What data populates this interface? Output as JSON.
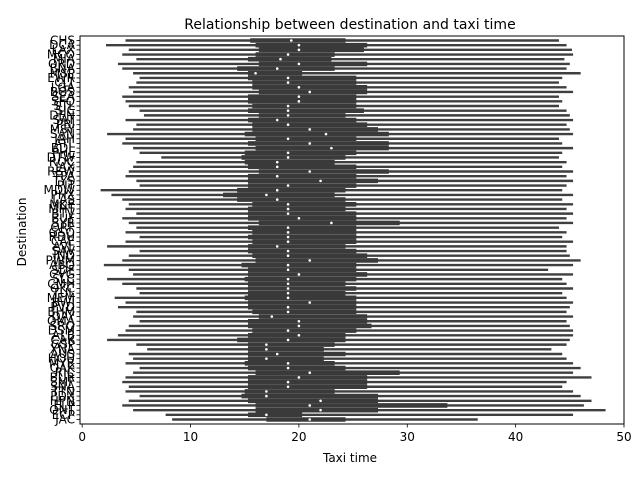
{
  "chart_data": {
    "type": "violin",
    "title": "Relationship between destination and taxi time",
    "xlabel": "Taxi time",
    "ylabel": "Destination",
    "xlim": [
      -0.2,
      50
    ],
    "xticks": [
      0,
      10,
      20,
      30,
      40,
      50
    ],
    "categories": [
      "CHS",
      "DCA",
      "LAX",
      "MCO",
      "MIA",
      "ORD",
      "BNA",
      "MSP",
      "EWR",
      "CLT",
      "LGA",
      "BOS",
      "SEA",
      "SFO",
      "STL",
      "SJC",
      "DEN",
      "SAT",
      "PBI",
      "MSY",
      "SAN",
      "IAH",
      "ATL",
      "BDL",
      "PHL",
      "DTW",
      "ROC",
      "JAX",
      "RSW",
      "TPA",
      "TYS",
      "PIT",
      "MDW",
      "PHX",
      "LAS",
      "MKE",
      "MHT",
      "BTV",
      "BUF",
      "SYR",
      "ORF",
      "GSO",
      "RDU",
      "CAE",
      "AVL",
      "SAV",
      "IND",
      "PWM",
      "ABQ",
      "SDF",
      "CVG",
      "SLC",
      "CMH",
      "OKC",
      "TUL",
      "MEM",
      "BWI",
      "PVD",
      "BHM",
      "DAY",
      "OMA",
      "SRQ",
      "DSM",
      "ALB",
      "CAK",
      "GSP",
      "XNA",
      "AUS",
      "HOU",
      "MYR",
      "OAK",
      "RIC",
      "BUR",
      "SMF",
      "SNA",
      "TTN",
      "PDX",
      "HPN",
      "ELP",
      "ONT",
      "ECP",
      "JAC"
    ],
    "stats": [
      {
        "min": 4.0,
        "q1": 15.5,
        "median": 19.3,
        "q3": 24.3,
        "max": 44.0
      },
      {
        "min": 2.2,
        "q1": 16.0,
        "median": 20.0,
        "q3": 26.3,
        "max": 44.7
      },
      {
        "min": 4.3,
        "q1": 16.3,
        "median": 20.0,
        "q3": 26.0,
        "max": 45.2
      },
      {
        "min": 3.7,
        "q1": 16.0,
        "median": 19.0,
        "q3": 23.3,
        "max": 45.3
      },
      {
        "min": 5.0,
        "q1": 15.3,
        "median": 18.3,
        "q3": 23.0,
        "max": 44.5
      },
      {
        "min": 3.3,
        "q1": 16.3,
        "median": 20.0,
        "q3": 26.3,
        "max": 45.0
      },
      {
        "min": 3.7,
        "q1": 14.3,
        "median": 18.0,
        "q3": 23.3,
        "max": 44.7
      },
      {
        "min": 4.7,
        "q1": 15.3,
        "median": 16.0,
        "q3": 20.3,
        "max": 46.0
      },
      {
        "min": 5.3,
        "q1": 15.3,
        "median": 19.0,
        "q3": 25.3,
        "max": 44.3
      },
      {
        "min": 5.0,
        "q1": 15.7,
        "median": 19.0,
        "q3": 25.3,
        "max": 44.0
      },
      {
        "min": 4.3,
        "q1": 15.7,
        "median": 20.0,
        "q3": 26.3,
        "max": 44.7
      },
      {
        "min": 4.7,
        "q1": 16.3,
        "median": 21.0,
        "q3": 26.3,
        "max": 45.3
      },
      {
        "min": 3.7,
        "q1": 15.3,
        "median": 20.0,
        "q3": 25.3,
        "max": 44.0
      },
      {
        "min": 4.0,
        "q1": 15.3,
        "median": 20.0,
        "q3": 25.3,
        "max": 44.3
      },
      {
        "min": 4.3,
        "q1": 15.7,
        "median": 19.0,
        "q3": 25.3,
        "max": 44.0
      },
      {
        "min": 5.3,
        "q1": 15.3,
        "median": 19.0,
        "q3": 26.0,
        "max": 44.7
      },
      {
        "min": 5.7,
        "q1": 16.3,
        "median": 19.0,
        "q3": 24.3,
        "max": 45.0
      },
      {
        "min": 4.0,
        "q1": 15.3,
        "median": 18.0,
        "q3": 25.3,
        "max": 45.3
      },
      {
        "min": 5.0,
        "q1": 15.7,
        "median": 19.0,
        "q3": 26.3,
        "max": 44.7
      },
      {
        "min": 4.7,
        "q1": 15.7,
        "median": 21.0,
        "q3": 27.3,
        "max": 45.0
      },
      {
        "min": 2.3,
        "q1": 15.0,
        "median": 22.5,
        "q3": 28.3,
        "max": 45.3
      },
      {
        "min": 4.0,
        "q1": 16.0,
        "median": 19.0,
        "q3": 25.3,
        "max": 44.0
      },
      {
        "min": 3.7,
        "q1": 15.3,
        "median": 21.0,
        "q3": 28.3,
        "max": 44.3
      },
      {
        "min": 4.7,
        "q1": 16.0,
        "median": 23.0,
        "q3": 28.3,
        "max": 45.3
      },
      {
        "min": 5.3,
        "q1": 15.0,
        "median": 19.0,
        "q3": 25.3,
        "max": 44.3
      },
      {
        "min": 7.3,
        "q1": 14.7,
        "median": 19.0,
        "q3": 24.3,
        "max": 44.0
      },
      {
        "min": 5.0,
        "q1": 15.0,
        "median": 18.0,
        "q3": 23.3,
        "max": 44.7
      },
      {
        "min": 4.7,
        "q1": 15.3,
        "median": 18.0,
        "q3": 25.3,
        "max": 44.3
      },
      {
        "min": 4.3,
        "q1": 16.3,
        "median": 21.0,
        "q3": 28.3,
        "max": 45.3
      },
      {
        "min": 4.0,
        "q1": 15.3,
        "median": 18.0,
        "q3": 25.3,
        "max": 44.7
      },
      {
        "min": 5.0,
        "q1": 15.3,
        "median": 22.0,
        "q3": 27.3,
        "max": 45.3
      },
      {
        "min": 5.3,
        "q1": 15.3,
        "median": 19.0,
        "q3": 25.3,
        "max": 44.7
      },
      {
        "min": 1.7,
        "q1": 14.3,
        "median": 18.0,
        "q3": 24.3,
        "max": 44.3
      },
      {
        "min": 2.7,
        "q1": 13.0,
        "median": 17.0,
        "q3": 23.3,
        "max": 45.3
      },
      {
        "min": 3.7,
        "q1": 14.3,
        "median": 18.0,
        "q3": 24.3,
        "max": 44.3
      },
      {
        "min": 4.3,
        "q1": 15.7,
        "median": 19.0,
        "q3": 25.3,
        "max": 45.3
      },
      {
        "min": 4.0,
        "q1": 15.3,
        "median": 19.0,
        "q3": 24.3,
        "max": 44.7
      },
      {
        "min": 5.0,
        "q1": 15.3,
        "median": 19.0,
        "q3": 25.3,
        "max": 45.3
      },
      {
        "min": 3.7,
        "q1": 15.3,
        "median": 20.0,
        "q3": 25.3,
        "max": 44.7
      },
      {
        "min": 4.3,
        "q1": 16.3,
        "median": 23.0,
        "q3": 29.3,
        "max": 45.3
      },
      {
        "min": 5.0,
        "q1": 15.3,
        "median": 19.0,
        "q3": 25.3,
        "max": 44.0
      },
      {
        "min": 4.0,
        "q1": 15.7,
        "median": 19.0,
        "q3": 25.3,
        "max": 44.7
      },
      {
        "min": 5.3,
        "q1": 15.3,
        "median": 19.0,
        "q3": 25.3,
        "max": 44.3
      },
      {
        "min": 4.0,
        "q1": 15.7,
        "median": 19.0,
        "q3": 25.3,
        "max": 45.3
      },
      {
        "min": 2.3,
        "q1": 15.3,
        "median": 18.0,
        "q3": 24.3,
        "max": 44.7
      },
      {
        "min": 5.3,
        "q1": 15.3,
        "median": 19.0,
        "q3": 25.3,
        "max": 44.7
      },
      {
        "min": 4.3,
        "q1": 15.7,
        "median": 19.0,
        "q3": 26.3,
        "max": 45.0
      },
      {
        "min": 3.7,
        "q1": 16.0,
        "median": 21.0,
        "q3": 27.3,
        "max": 46.0
      },
      {
        "min": 2.0,
        "q1": 14.7,
        "median": 19.0,
        "q3": 25.3,
        "max": 45.3
      },
      {
        "min": 4.3,
        "q1": 15.3,
        "median": 19.0,
        "q3": 25.3,
        "max": 43.0
      },
      {
        "min": 4.7,
        "q1": 15.3,
        "median": 20.0,
        "q3": 26.3,
        "max": 45.3
      },
      {
        "min": 2.3,
        "q1": 15.0,
        "median": 19.0,
        "q3": 25.3,
        "max": 44.3
      },
      {
        "min": 3.7,
        "q1": 15.3,
        "median": 19.0,
        "q3": 24.3,
        "max": 44.7
      },
      {
        "min": 5.0,
        "q1": 15.3,
        "median": 19.0,
        "q3": 25.3,
        "max": 45.3
      },
      {
        "min": 5.3,
        "q1": 15.3,
        "median": 19.0,
        "q3": 24.3,
        "max": 44.3
      },
      {
        "min": 3.0,
        "q1": 15.0,
        "median": 19.0,
        "q3": 25.3,
        "max": 44.7
      },
      {
        "min": 4.0,
        "q1": 15.3,
        "median": 21.0,
        "q3": 25.3,
        "max": 45.3
      },
      {
        "min": 3.3,
        "q1": 15.3,
        "median": 19.0,
        "q3": 25.3,
        "max": 45.0
      },
      {
        "min": 5.0,
        "q1": 15.7,
        "median": 19.0,
        "q3": 25.3,
        "max": 44.7
      },
      {
        "min": 4.7,
        "q1": 16.3,
        "median": 17.5,
        "q3": 26.3,
        "max": 45.3
      },
      {
        "min": 5.3,
        "q1": 15.3,
        "median": 20.0,
        "q3": 26.3,
        "max": 44.7
      },
      {
        "min": 4.3,
        "q1": 15.3,
        "median": 20.0,
        "q3": 26.7,
        "max": 45.0
      },
      {
        "min": 4.0,
        "q1": 15.7,
        "median": 19.0,
        "q3": 25.3,
        "max": 45.3
      },
      {
        "min": 3.3,
        "q1": 15.3,
        "median": 20.0,
        "q3": 24.3,
        "max": 45.3
      },
      {
        "min": 2.3,
        "q1": 14.3,
        "median": 19.0,
        "q3": 24.3,
        "max": 45.0
      },
      {
        "min": 5.0,
        "q1": 15.3,
        "median": 17.0,
        "q3": 23.3,
        "max": 44.7
      },
      {
        "min": 6.0,
        "q1": 15.3,
        "median": 17.0,
        "q3": 22.3,
        "max": 43.3
      },
      {
        "min": 4.3,
        "q1": 15.3,
        "median": 18.0,
        "q3": 24.3,
        "max": 44.3
      },
      {
        "min": 4.7,
        "q1": 15.3,
        "median": 17.0,
        "q3": 22.3,
        "max": 44.7
      },
      {
        "min": 4.0,
        "q1": 15.0,
        "median": 19.0,
        "q3": 23.3,
        "max": 45.3
      },
      {
        "min": 5.3,
        "q1": 15.3,
        "median": 19.0,
        "q3": 24.3,
        "max": 46.0
      },
      {
        "min": 4.7,
        "q1": 16.0,
        "median": 21.0,
        "q3": 29.3,
        "max": 45.3
      },
      {
        "min": 4.0,
        "q1": 15.3,
        "median": 20.0,
        "q3": 26.3,
        "max": 47.0
      },
      {
        "min": 3.7,
        "q1": 15.3,
        "median": 19.0,
        "q3": 26.3,
        "max": 44.7
      },
      {
        "min": 4.3,
        "q1": 15.3,
        "median": 19.0,
        "q3": 26.3,
        "max": 44.3
      },
      {
        "min": 4.0,
        "q1": 15.0,
        "median": 17.0,
        "q3": 23.3,
        "max": 45.3
      },
      {
        "min": 5.3,
        "q1": 14.7,
        "median": 17.0,
        "q3": 27.3,
        "max": 46.0
      },
      {
        "min": 4.3,
        "q1": 15.3,
        "median": 22.0,
        "q3": 27.3,
        "max": 47.0
      },
      {
        "min": 3.7,
        "q1": 16.0,
        "median": 21.0,
        "q3": 33.7,
        "max": 46.3
      },
      {
        "min": 4.7,
        "q1": 16.0,
        "median": 22.0,
        "q3": 27.3,
        "max": 48.3
      },
      {
        "min": 7.7,
        "q1": 15.3,
        "median": 17.0,
        "q3": 20.3,
        "max": 45.3
      },
      {
        "min": 8.3,
        "q1": 17.0,
        "median": 21.0,
        "q3": 24.3,
        "max": 36.5
      }
    ]
  }
}
